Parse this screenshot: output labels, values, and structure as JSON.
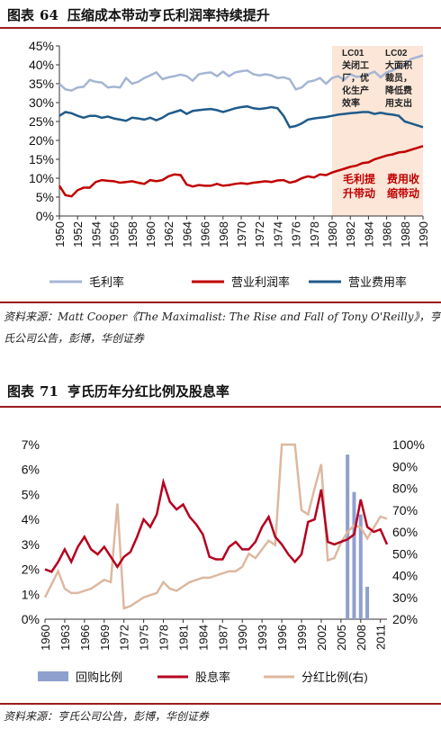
{
  "figure1": {
    "label": "图表",
    "number": "64",
    "title": "压缩成本带动亨氏利润率持续提升",
    "source": "资料来源：Matt Cooper《The Maximalist: The Rise and Fall of Tony O'Reilly》，亨氏公司公告，彭博，华创证券",
    "colors": {
      "gross": "#a5b5d4",
      "op": "#c00000",
      "exp": "#1f5b8a",
      "shade": "#fbe6d8",
      "note": "#c00000"
    },
    "annotations": {
      "lc01_title": "LC01",
      "lc01_lines": [
        "关闭工",
        "厂，优",
        "化生产",
        "效率"
      ],
      "lc02_title": "LC02",
      "lc02_lines": [
        "大面积",
        "裁员，",
        "降低费",
        "用支出"
      ],
      "red_left": [
        "毛利提",
        "升带动"
      ],
      "red_right": [
        "费用收",
        "缩带动"
      ]
    },
    "chart_data": {
      "type": "line",
      "x_start": 1950,
      "x_end": 1990,
      "x_ticks": [
        "1950",
        "1952",
        "1954",
        "1956",
        "1958",
        "1960",
        "1962",
        "1964",
        "1966",
        "1968",
        "1970",
        "1972",
        "1974",
        "1976",
        "1978",
        "1980",
        "1982",
        "1984",
        "1986",
        "1988",
        "1990"
      ],
      "y_ticks": [
        "0%",
        "5%",
        "10%",
        "15%",
        "20%",
        "25%",
        "30%",
        "35%",
        "40%",
        "45%"
      ],
      "ylim": [
        0,
        45
      ],
      "shade_range": [
        1980,
        1990
      ],
      "series": [
        {
          "name": "毛利率",
          "values": [
            35,
            33.5,
            33.2,
            34,
            34.2,
            36,
            35.5,
            35.3,
            34,
            34.2,
            34,
            36.5,
            35,
            35.5,
            36.5,
            37.2,
            38,
            36.2,
            36.7,
            37,
            37.4,
            37,
            35.8,
            37.5,
            37.8,
            38,
            37,
            38.2,
            37,
            38,
            38.3,
            38.5,
            37.5,
            37.2,
            37.5,
            37.2,
            36.5,
            36.7,
            36.2,
            33.5,
            34,
            35.5,
            35.8,
            36.5,
            35,
            36.5,
            37,
            36,
            37.5,
            36.8,
            37,
            37.5,
            38.2,
            36.7,
            38,
            38.5,
            39.5,
            40,
            41.5,
            42,
            42.5
          ]
        },
        {
          "name": "营业利润率",
          "values": [
            8,
            5.5,
            5.2,
            6.8,
            7.5,
            7.5,
            9,
            9.5,
            9.3,
            9.2,
            8.8,
            9,
            9.2,
            8.8,
            8.5,
            9.5,
            9.2,
            9.5,
            10.5,
            11,
            10.8,
            8.3,
            7.8,
            8.2,
            8,
            8,
            8.5,
            8,
            8.2,
            8.5,
            8.7,
            8.5,
            8.8,
            9,
            9.2,
            9,
            9.4,
            9.5,
            8.8,
            9.2,
            10,
            10.5,
            10.2,
            11,
            10.8,
            11.5,
            12,
            12.5,
            13,
            13.3,
            14,
            14.2,
            15,
            15.5,
            16,
            16.3,
            16.8,
            17,
            17.5,
            18,
            18.5
          ]
        },
        {
          "name": "营业费用率",
          "values": [
            26.5,
            27.5,
            27.2,
            26.5,
            26,
            26.5,
            26.5,
            26,
            26.3,
            25.8,
            25.5,
            25.2,
            26,
            25.8,
            25.5,
            26,
            25.3,
            26,
            27,
            27.5,
            28,
            27,
            27.8,
            28,
            28.2,
            28.3,
            28,
            27.5,
            28,
            28.5,
            28.8,
            29,
            28.5,
            28.3,
            28.5,
            28.8,
            28.5,
            26.5,
            23.5,
            23.8,
            24.5,
            25.5,
            25.8,
            26,
            26.2,
            26.5,
            26.8,
            27,
            27.2,
            27.3,
            27.5,
            27.5,
            27,
            27.3,
            27,
            26.8,
            26.5,
            25,
            24.5,
            24,
            23.5
          ]
        }
      ],
      "legend": [
        "毛利率",
        "营业利润率",
        "营业费用率"
      ]
    }
  },
  "figure2": {
    "label": "图表",
    "number": "71",
    "title": "亨氏历年分红比例及股息率",
    "source": "资料来源：亨氏公司公告，彭博，华创证券",
    "colors": {
      "buyback": "#8fa0cf",
      "yield": "#b5001f",
      "payout": "#ddb8a0"
    },
    "chart_data": {
      "type": "line",
      "x_start": 1960,
      "x_end": 2012,
      "x_ticks": [
        "1960",
        "1963",
        "1966",
        "1969",
        "1972",
        "1975",
        "1978",
        "1981",
        "1984",
        "1987",
        "1990",
        "1993",
        "1996",
        "1999",
        "2002",
        "2005",
        "2008",
        "2011"
      ],
      "y_left_ticks": [
        "0%",
        "1%",
        "2%",
        "3%",
        "4%",
        "5%",
        "6%",
        "7%"
      ],
      "y_right_ticks": [
        "20%",
        "30%",
        "40%",
        "50%",
        "60%",
        "70%",
        "80%",
        "90%",
        "100%"
      ],
      "ylim_left": [
        0,
        7
      ],
      "ylim_right": [
        20,
        100
      ],
      "series": [
        {
          "name": "回购比例",
          "axis": "left",
          "kind": "bar",
          "years": [
            2006,
            2007,
            2008,
            2009
          ],
          "values": [
            6.6,
            5.1,
            4.2,
            1.3
          ]
        },
        {
          "name": "股息率",
          "axis": "left",
          "kind": "line",
          "years": [
            1960,
            1961,
            1962,
            1963,
            1964,
            1965,
            1966,
            1967,
            1968,
            1969,
            1970,
            1971,
            1972,
            1973,
            1974,
            1975,
            1976,
            1977,
            1978,
            1979,
            1980,
            1981,
            1982,
            1983,
            1984,
            1985,
            1986,
            1987,
            1988,
            1989,
            1990,
            1991,
            1992,
            1993,
            1994,
            1995,
            1996,
            1997,
            1998,
            1999,
            2000,
            2001,
            2002,
            2003,
            2004,
            2005,
            2006,
            2007,
            2008,
            2009,
            2010,
            2011,
            2012
          ],
          "values": [
            2.0,
            1.9,
            2.3,
            2.8,
            2.3,
            2.9,
            3.3,
            2.8,
            2.6,
            2.9,
            2.5,
            2.1,
            2.5,
            2.7,
            3.3,
            4.0,
            3.7,
            4.2,
            5.5,
            4.7,
            4.4,
            4.6,
            4.1,
            3.8,
            3.4,
            2.5,
            2.4,
            2.4,
            2.9,
            3.1,
            2.8,
            2.8,
            3.1,
            3.7,
            4.1,
            3.3,
            3.0,
            2.6,
            2.3,
            2.6,
            3.9,
            4.0,
            5.2,
            3.1,
            3.0,
            3.1,
            3.2,
            3.4,
            4.8,
            3.7,
            3.5,
            3.6,
            3.0
          ]
        },
        {
          "name": "分红比例(右)",
          "axis": "right",
          "kind": "line",
          "years": [
            1960,
            1961,
            1962,
            1963,
            1964,
            1965,
            1966,
            1967,
            1968,
            1969,
            1970,
            1971,
            1972,
            1973,
            1974,
            1975,
            1976,
            1977,
            1978,
            1979,
            1980,
            1981,
            1982,
            1983,
            1984,
            1985,
            1986,
            1987,
            1988,
            1989,
            1990,
            1991,
            1992,
            1993,
            1994,
            1995,
            1996,
            1997,
            1998,
            1999,
            2000,
            2001,
            2002,
            2003,
            2004,
            2005,
            2006,
            2007,
            2008,
            2009,
            2010,
            2011,
            2012
          ],
          "values": [
            30,
            36,
            42,
            34,
            32,
            32,
            33,
            34,
            36,
            38,
            37,
            73,
            25,
            26,
            28,
            30,
            31,
            32,
            37,
            34,
            33,
            35,
            37,
            38,
            39,
            39,
            40,
            41,
            42,
            42,
            44,
            50,
            48,
            52,
            56,
            54,
            100,
            100,
            100,
            70,
            68,
            80,
            91,
            47,
            48,
            55,
            60,
            63,
            62,
            57,
            62,
            67,
            66
          ]
        }
      ],
      "legend": [
        "回购比例",
        "股息率",
        "分红比例(右)"
      ]
    }
  }
}
